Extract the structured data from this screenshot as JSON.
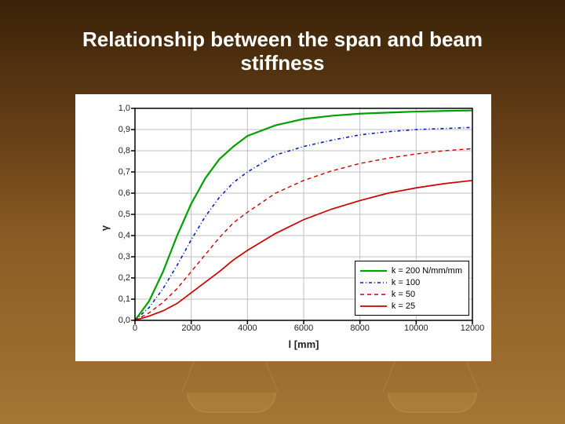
{
  "slide": {
    "bg_gradient": [
      "#3a2208",
      "#6b4318",
      "#8a5a24",
      "#a67634"
    ],
    "title_line1": "Relationship between the span and beam",
    "title_line2": "stiffness",
    "title_color": "#ffffff",
    "title_fontsize": 26
  },
  "chart": {
    "type": "line",
    "background_color": "#ffffff",
    "grid_color": "#bfbfbf",
    "axis_color": "#000000",
    "x_axis_title": "l [mm]",
    "y_axis_title": "γ",
    "xlim": [
      0,
      12000
    ],
    "ylim": [
      0.0,
      1.0
    ],
    "x_ticks": [
      0,
      2000,
      4000,
      6000,
      8000,
      10000,
      12000
    ],
    "y_ticks": [
      0.0,
      0.1,
      0.2,
      0.3,
      0.4,
      0.5,
      0.6,
      0.7,
      0.8,
      0.9,
      1.0
    ],
    "y_tick_labels": [
      "0,0",
      "0,1",
      "0,2",
      "0,3",
      "0,4",
      "0,5",
      "0,6",
      "0,7",
      "0,8",
      "0,9",
      "1,0"
    ],
    "tick_fontsize": 11,
    "axis_title_fontsize": 13,
    "series": [
      {
        "label": "k = 200 N/mm/mm",
        "color": "#00a000",
        "width": 2.2,
        "dash": "",
        "x": [
          0,
          500,
          1000,
          1500,
          2000,
          2500,
          3000,
          3500,
          4000,
          5000,
          6000,
          7000,
          8000,
          9000,
          10000,
          11000,
          12000
        ],
        "y": [
          0.0,
          0.09,
          0.23,
          0.4,
          0.55,
          0.67,
          0.76,
          0.82,
          0.87,
          0.92,
          0.95,
          0.965,
          0.975,
          0.98,
          0.985,
          0.988,
          0.99
        ]
      },
      {
        "label": "k = 100",
        "color": "#0020c0",
        "width": 1.6,
        "dash": "4 3 1 3",
        "x": [
          0,
          500,
          1000,
          1500,
          2000,
          2500,
          3000,
          3500,
          4000,
          5000,
          6000,
          7000,
          8000,
          9000,
          10000,
          11000,
          12000
        ],
        "y": [
          0.0,
          0.06,
          0.15,
          0.26,
          0.38,
          0.49,
          0.58,
          0.65,
          0.7,
          0.78,
          0.82,
          0.85,
          0.875,
          0.89,
          0.9,
          0.905,
          0.91
        ]
      },
      {
        "label": "k = 50",
        "color": "#cc0000",
        "width": 1.4,
        "dash": "5 4",
        "x": [
          0,
          500,
          1000,
          1500,
          2000,
          2500,
          3000,
          3500,
          4000,
          5000,
          6000,
          7000,
          8000,
          9000,
          10000,
          11000,
          12000
        ],
        "y": [
          0.0,
          0.035,
          0.085,
          0.15,
          0.23,
          0.31,
          0.39,
          0.46,
          0.51,
          0.6,
          0.66,
          0.705,
          0.74,
          0.765,
          0.785,
          0.8,
          0.81
        ]
      },
      {
        "label": "k = 25",
        "color": "#cc0000",
        "width": 1.7,
        "dash": "",
        "x": [
          0,
          500,
          1000,
          1500,
          2000,
          2500,
          3000,
          3500,
          4000,
          5000,
          6000,
          7000,
          8000,
          9000,
          10000,
          11000,
          12000
        ],
        "y": [
          0.0,
          0.02,
          0.045,
          0.08,
          0.13,
          0.18,
          0.23,
          0.285,
          0.33,
          0.41,
          0.475,
          0.525,
          0.565,
          0.6,
          0.625,
          0.645,
          0.66
        ]
      }
    ],
    "legend": {
      "position": "lower-right-inside",
      "border_color": "#000000",
      "bg": "#ffffff",
      "fontsize": 11
    }
  }
}
